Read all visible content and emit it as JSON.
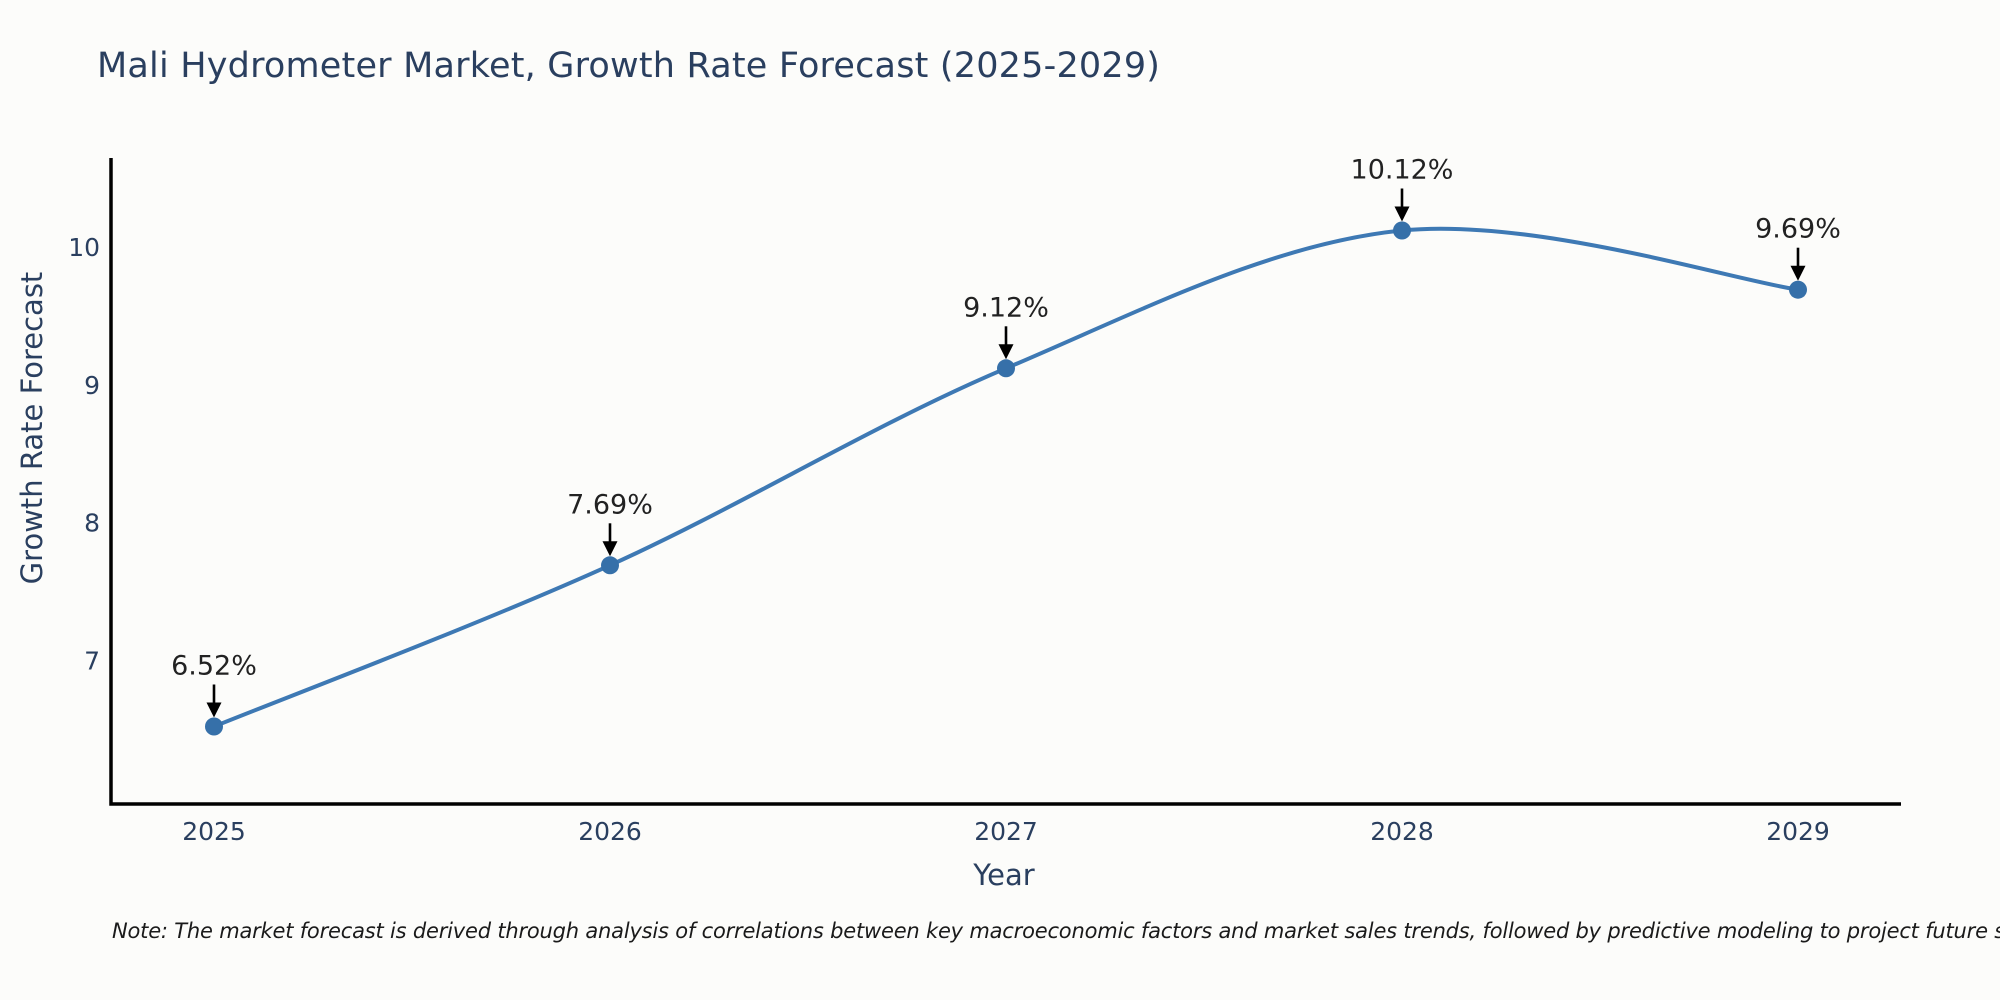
{
  "title": "Mali Hydrometer Market, Growth Rate Forecast (2025-2029)",
  "note": "Note: The market forecast is derived through analysis of correlations between key macroeconomic factors and market sales trends, followed by predictive modeling to project future sales",
  "chart_data": {
    "type": "line",
    "line_shape": "spline",
    "title": "Mali Hydrometer Market, Growth Rate Forecast (2025-2029)",
    "xlabel": "Year",
    "ylabel": "Growth Rate Forecast",
    "x": [
      2025,
      2026,
      2027,
      2028,
      2029
    ],
    "series": [
      {
        "name": "Growth Rate Forecast",
        "values": [
          6.52,
          7.69,
          9.12,
          10.12,
          9.69
        ]
      }
    ],
    "point_labels": [
      "6.52%",
      "7.69%",
      "9.12%",
      "10.12%",
      "9.69%"
    ],
    "xticks": [
      "2025",
      "2026",
      "2027",
      "2028",
      "2029"
    ],
    "yticks": [
      7,
      8,
      9,
      10
    ],
    "xlim": [
      2024.74,
      2029.26
    ],
    "ylim": [
      5.96,
      10.65
    ],
    "grid": false,
    "legend": false,
    "colors": {
      "line": "#3e79b4",
      "marker": "#3670a9",
      "axis": "#000000",
      "title_text": "#2a3f5f",
      "tick_text": "#2a3f5f",
      "annotation_text": "#222222",
      "arrow": "#000000",
      "background": "#fcfcfa"
    }
  }
}
